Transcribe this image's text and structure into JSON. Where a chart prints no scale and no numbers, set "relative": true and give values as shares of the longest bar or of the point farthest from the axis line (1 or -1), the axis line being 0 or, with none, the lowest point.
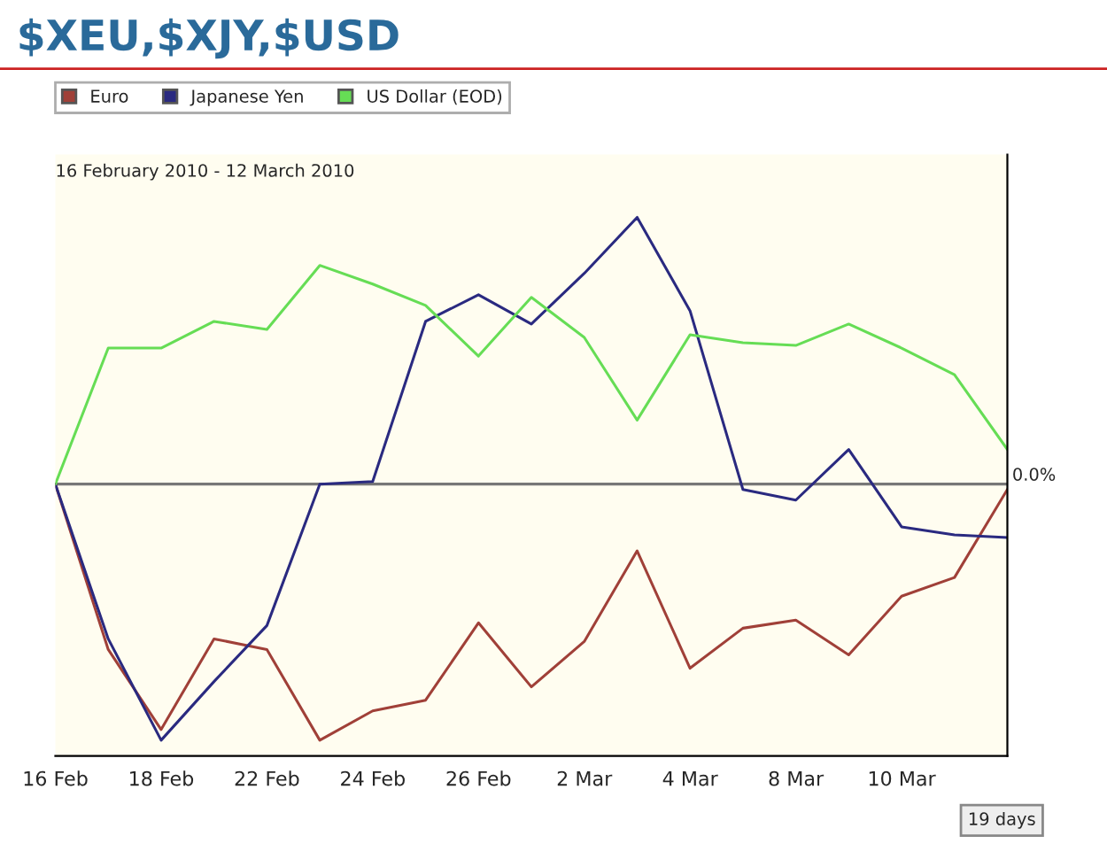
{
  "chart_data": {
    "type": "line",
    "title": "$XEU,$XJY,$USD",
    "relative": true,
    "categories": [
      "16 Feb",
      null,
      "18 Feb",
      null,
      "22 Feb",
      null,
      "24 Feb",
      null,
      "26 Feb",
      null,
      "2 Mar",
      null,
      "4 Mar",
      null,
      "8 Mar",
      null,
      "10 Mar",
      null,
      null
    ],
    "series": [
      {
        "name": "Euro",
        "color": "#a04038",
        "values": [
          0,
          -0.62,
          -0.92,
          -0.58,
          -0.62,
          -0.96,
          -0.85,
          -0.81,
          -0.52,
          -0.76,
          -0.59,
          -0.25,
          -0.69,
          -0.54,
          -0.51,
          -0.64,
          -0.42,
          -0.35,
          -0.02
        ]
      },
      {
        "name": "Japanese Yen",
        "color": "#2a2a80",
        "values": [
          0,
          -0.58,
          -0.96,
          -0.74,
          -0.53,
          0,
          0.01,
          0.61,
          0.71,
          0.6,
          0.79,
          1,
          0.65,
          -0.02,
          -0.06,
          0.13,
          -0.16,
          -0.19,
          -0.2
        ]
      },
      {
        "name": "US Dollar (EOD)",
        "color": "#66dd55",
        "values": [
          0,
          0.51,
          0.51,
          0.61,
          0.58,
          0.82,
          0.75,
          0.67,
          0.48,
          0.7,
          0.55,
          0.24,
          0.56,
          0.53,
          0.52,
          0.6,
          0.51,
          0.41,
          0.13
        ]
      }
    ],
    "ref_lines": [
      {
        "axis": "y",
        "value": 0,
        "label": "0.0%",
        "color": "#777777"
      }
    ],
    "annotations": [
      "16 February 2010 - 12 March 2010",
      "19 days"
    ],
    "legend": "top left",
    "grid": false,
    "marker": "none",
    "line_style": "solid"
  }
}
